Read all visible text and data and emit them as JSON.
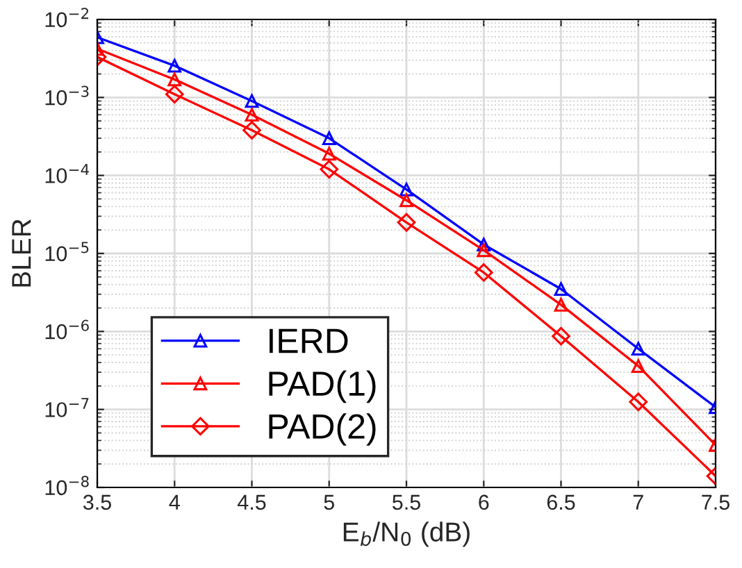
{
  "chart_data": {
    "type": "line",
    "xlabel": "E$_{b}$/N$_{0}$ (dB)",
    "ylabel": "BLER",
    "x": [
      3.5,
      4,
      4.5,
      5,
      5.5,
      6,
      6.5,
      7,
      7.5
    ],
    "series": [
      {
        "name": "IERD",
        "color": "#0000ff",
        "marker": "triangle",
        "values": [
          0.0059,
          0.00255,
          0.0009,
          0.0003,
          6.6e-05,
          1.3e-05,
          3.5e-06,
          6e-07,
          1.07e-07
        ]
      },
      {
        "name": "PAD(1)",
        "color": "#ff0000",
        "marker": "triangle",
        "values": [
          0.0042,
          0.0017,
          0.0006,
          0.00019,
          4.8e-05,
          1.1e-05,
          2.2e-06,
          3.6e-07,
          3.5e-08
        ]
      },
      {
        "name": "PAD(2)",
        "color": "#ff0000",
        "marker": "diamond",
        "values": [
          0.0033,
          0.0011,
          0.00038,
          0.00012,
          2.5e-05,
          5.7e-06,
          8.7e-07,
          1.25e-07,
          1.4e-08
        ]
      }
    ],
    "log": "y",
    "grid": true,
    "legend": "bottom left",
    "line_style": "solid",
    "xlim": [
      3.5,
      7.5
    ],
    "xticks": [
      3.5,
      4,
      4.5,
      5,
      5.5,
      6,
      6.5,
      7,
      7.5
    ],
    "ylim": [
      1e-08,
      0.01
    ],
    "yticks": [
      {
        "value": 1e-08,
        "label": "10$^{−8}$"
      },
      {
        "value": 1e-07,
        "label": "10$^{−7}$"
      },
      {
        "value": 1e-06,
        "label": "10$^{−6}$"
      },
      {
        "value": 1e-05,
        "label": "10$^{−5}$"
      },
      {
        "value": 0.0001,
        "label": "10$^{−4}$"
      },
      {
        "value": 0.001,
        "label": "10$^{−3}$"
      },
      {
        "value": 0.01,
        "label": "10$^{−2}$"
      }
    ]
  }
}
